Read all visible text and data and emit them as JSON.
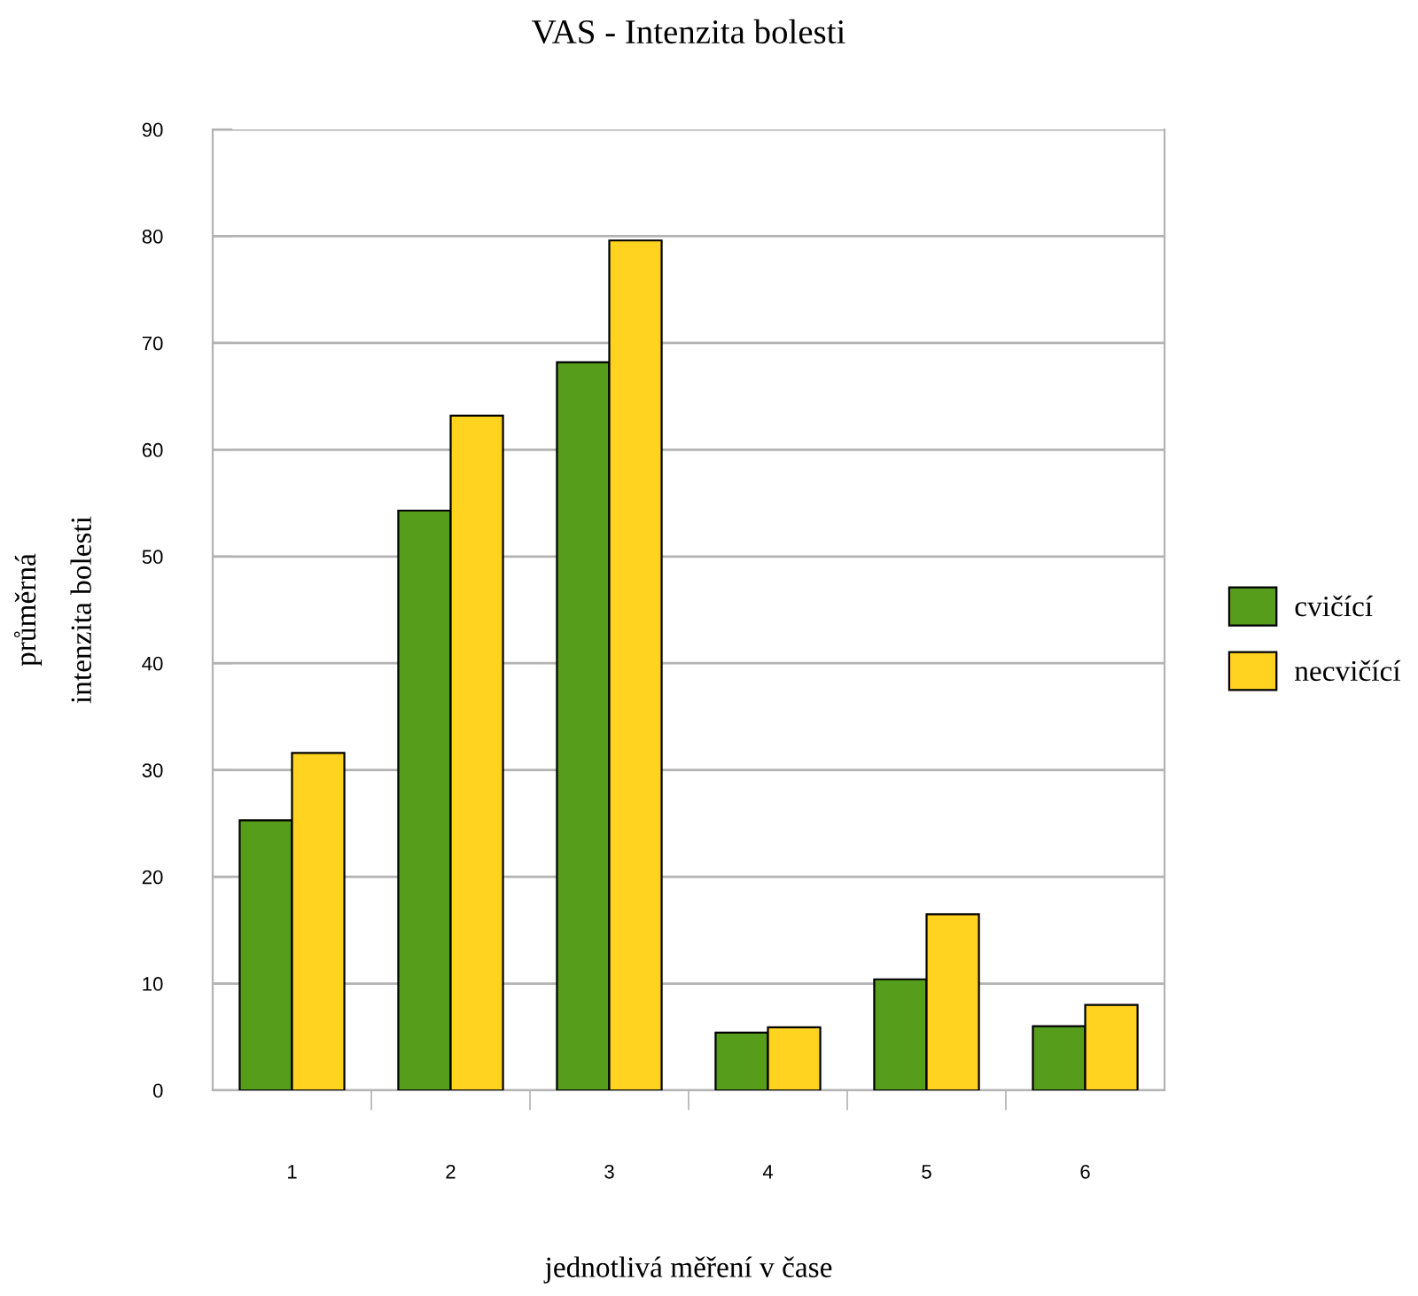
{
  "chart_data": {
    "type": "bar",
    "title": "VAS - Intenzita bolesti",
    "xlabel": "jednotlivá měření v čase",
    "ylabel": "průměrná\nintenzita bolesti",
    "categories": [
      "1",
      "2",
      "3",
      "4",
      "5",
      "6"
    ],
    "series": [
      {
        "name": "cvičící",
        "color": "#579d1c",
        "values": [
          25.3,
          54.3,
          68.2,
          5.4,
          10.4,
          6.0
        ]
      },
      {
        "name": "necvičící",
        "color": "#ffd320",
        "values": [
          31.6,
          63.2,
          79.6,
          5.9,
          16.5,
          8.0
        ]
      }
    ],
    "ylim": [
      0,
      90
    ],
    "yticks": [
      0,
      10,
      20,
      30,
      40,
      50,
      60,
      70,
      80,
      90
    ],
    "grid": "y",
    "legend": "right"
  }
}
